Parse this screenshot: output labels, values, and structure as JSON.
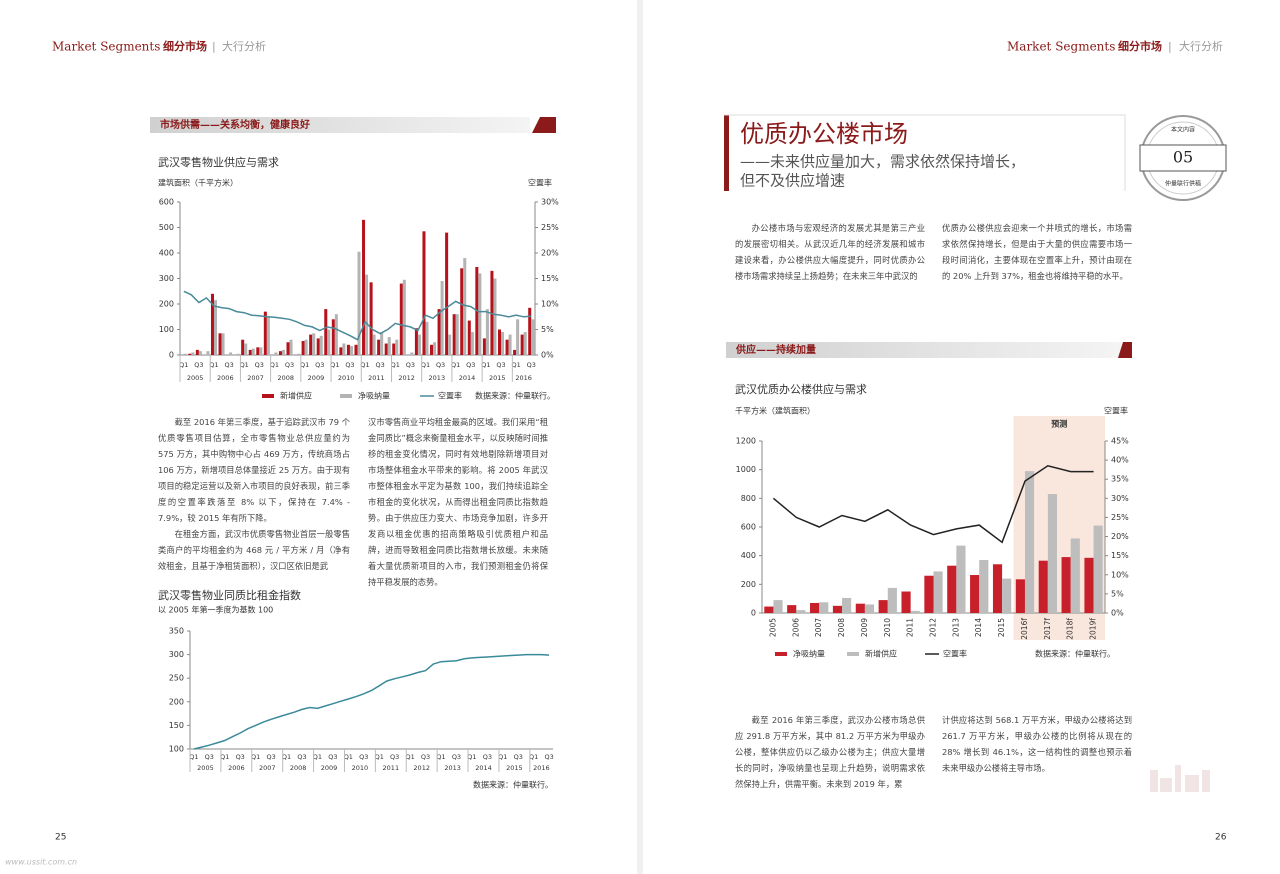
{
  "header": {
    "left": {
      "en": "Market Segments",
      "cn": "细分市场",
      "sep": "|",
      "tag": "大行分析"
    },
    "right": {
      "en": "Market Segments",
      "cn": "细分市场",
      "sep": "|",
      "tag": "大行分析"
    }
  },
  "left_page": {
    "section_heading": "市场供需——关系均衡，健康良好",
    "paragraphs_col1": [
      "截至 2016 年第三季度，基于追踪武汉市 79 个优质零售项目估算，全市零售物业总供应量约为 575 万方，其中购物中心占 469 万方，传统商场占 106 万方，新增项目总体量接近 25 万方。由于现有项目的稳定运营以及新入市项目的良好表现，前三季度的空置率跌落至 8% 以下，保持在 7.4% - 7.9%，较 2015 年有所下降。",
      "在租金方面，武汉市优质零售物业首层一般零售类商户的平均租金约为 468 元 / 平方米 / 月（净有效租金，且基于净租赁面积），汉口区依旧是武"
    ],
    "paragraphs_col2": [
      "汉市零售商业平均租金最高的区域。我们采用“租金同质比”概念来衡量租金水平，以反映随时间推移的租金变化情况，同时有效地剔除新增项目对市场整体租金水平带来的影响。将 2005 年武汉市整体租金水平定为基数 100，我们持续追踪全市租金的变化状况，从而得出租金同质比指数趋势。由于供应压力变大、市场竞争加剧，许多开发商以租金优惠的招商策略吸引优质租户和品牌，进而导致租金同质比指数增长放缓。未来随着大量优质新项目的入市，我们预测租金仍将保持平稳发展的态势。"
    ],
    "page_number": "25",
    "watermark": "www.ussit.com.cn"
  },
  "right_page": {
    "title": "优质办公楼市场",
    "subtitle_lines": [
      "——未来供应量加大，需求依然保持增长，",
      "但不及供应增速"
    ],
    "badge": {
      "top": "本文内容",
      "number": "05",
      "bottom": "仲量联行供稿"
    },
    "intro_col1": "办公楼市场与宏观经济的发展尤其是第三产业的发展密切相关。从武汉近几年的经济发展和城市建设来看，办公楼供应大幅度提升，同时优质办公楼市场需求持续呈上扬趋势；在未来三年中武汉的",
    "intro_col2": "优质办公楼供应会迎来一个井喷式的增长，市场需求依然保持增长，但是由于大量的供应需要市场一段时间消化，主要体现在空置率上升，预计由现在的 20% 上升到 37%，租金也将维持平稳的水平。",
    "section_heading": "供应——持续加量",
    "body_col1": "截至 2016 年第三季度，武汉办公楼市场总供应 291.8 万平方米，其中 81.2 万平方米为甲级办公楼，整体供应仍以乙级办公楼为主；供应大量增长的同时，净吸纳量也呈现上升趋势，说明需求依然保持上升，供需平衡。未来到 2019 年，累",
    "body_col2": "计供应将达到 568.1 万平方米，甲级办公楼将达到 261.7 万平方米，甲级办公楼的比例将从现在的 28% 增长到 46.1%，这一结构性的调整也预示着未来甲级办公楼将主导市场。",
    "page_number": "26"
  },
  "chart_data": [
    {
      "type": "bar",
      "title": "武汉零售物业供应与需求",
      "y_label": "建筑面积（千平方米）",
      "y2_label": "空置率",
      "source": "数据来源：仲量联行。",
      "categories": [
        "Q1",
        null,
        "Q3",
        null,
        "Q1",
        null,
        "Q3",
        null,
        "Q1",
        null,
        "Q3",
        null,
        "Q1",
        null,
        "Q3",
        null,
        "Q1",
        null,
        "Q3",
        null,
        "Q1",
        null,
        "Q3",
        null,
        "Q1",
        null,
        "Q3",
        null,
        "Q1",
        null,
        "Q3",
        null,
        "Q1",
        null,
        "Q3",
        null,
        "Q1",
        null,
        "Q3",
        null,
        "Q1",
        null,
        "Q3",
        null,
        "Q1",
        null,
        "Q3"
      ],
      "year_labels": [
        "2005",
        "2006",
        "2007",
        "2008",
        "2009",
        "2010",
        "2011",
        "2012",
        "2013",
        "2014",
        "2015",
        "2016"
      ],
      "series": [
        {
          "name": "新增供应",
          "color": "#b5121b",
          "values": [
            0,
            5,
            20,
            0,
            240,
            85,
            0,
            0,
            60,
            20,
            30,
            170,
            0,
            15,
            50,
            0,
            55,
            80,
            65,
            180,
            140,
            30,
            40,
            40,
            530,
            285,
            60,
            45,
            45,
            280,
            0,
            105,
            485,
            40,
            180,
            480,
            160,
            340,
            135,
            345,
            65,
            330,
            100,
            60,
            20,
            80,
            185
          ]
        },
        {
          "name": "净吸纳量",
          "color": "#b3b3b3",
          "values": [
            5,
            10,
            15,
            15,
            215,
            85,
            10,
            5,
            45,
            25,
            30,
            150,
            10,
            20,
            60,
            5,
            60,
            85,
            75,
            100,
            160,
            45,
            35,
            405,
            315,
            80,
            90,
            70,
            60,
            295,
            10,
            80,
            130,
            50,
            290,
            80,
            160,
            380,
            90,
            320,
            180,
            300,
            90,
            80,
            140,
            90,
            140
          ]
        },
        {
          "name": "空置率",
          "color": "#4a8a9a",
          "axis": "y2",
          "values": [
            12.5,
            11.8,
            10.3,
            11.2,
            9.6,
            9.3,
            9.1,
            8.5,
            8.3,
            7.8,
            7.7,
            7.5,
            7.4,
            7.2,
            7.0,
            6.5,
            5.8,
            5.5,
            4.8,
            5.5,
            5.2,
            4.5,
            3.8,
            3.0,
            6.5,
            5.0,
            4.2,
            5.0,
            6.2,
            5.8,
            5.5,
            4.8,
            7.8,
            7.2,
            8.5,
            9.5,
            10.5,
            9.8,
            9.5,
            8.5,
            8.5,
            8.0,
            7.8,
            7.5,
            7.8,
            7.5,
            7.6
          ]
        }
      ],
      "ylim": [
        0,
        600
      ],
      "yticks": [
        0,
        100,
        200,
        300,
        400,
        500,
        600
      ],
      "y2lim": [
        0,
        30
      ],
      "y2ticks": [
        {
          "value": 0,
          "label": "0%"
        },
        {
          "value": 5,
          "label": "5%"
        },
        {
          "value": 10,
          "label": "10%"
        },
        {
          "value": 15,
          "label": "15%"
        },
        {
          "value": 20,
          "label": "20%"
        },
        {
          "value": 25,
          "label": "25%"
        },
        {
          "value": 30,
          "label": "30%"
        }
      ]
    },
    {
      "type": "line",
      "title": "武汉零售物业同质比租金指数",
      "subtitle": "以 2005 年第一季度为基数 100",
      "source": "数据来源：仲量联行。",
      "categories": [
        "Q1",
        null,
        "Q3",
        null,
        "Q1",
        null,
        "Q3",
        null,
        "Q1",
        null,
        "Q3",
        null,
        "Q1",
        null,
        "Q3",
        null,
        "Q1",
        null,
        "Q3",
        null,
        "Q1",
        null,
        "Q3",
        null,
        "Q1",
        null,
        "Q3",
        null,
        "Q1",
        null,
        "Q3",
        null,
        "Q1",
        null,
        "Q3",
        null,
        "Q1",
        null,
        "Q3",
        null,
        "Q1",
        null,
        "Q3",
        null,
        "Q1",
        null,
        "Q3"
      ],
      "year_labels": [
        "2005",
        "2006",
        "2007",
        "2008",
        "2009",
        "2010",
        "2011",
        "2012",
        "2013",
        "2014",
        "2015",
        "2016"
      ],
      "series": [
        {
          "name": null,
          "color": "#3a8a9a",
          "values": [
            100,
            104,
            108,
            113,
            118,
            126,
            134,
            143,
            150,
            157,
            163,
            168,
            173,
            178,
            184,
            188,
            186,
            191,
            196,
            201,
            206,
            211,
            217,
            224,
            234,
            244,
            249,
            253,
            257,
            262,
            266,
            280,
            285,
            286,
            287,
            291,
            293,
            294,
            295,
            296,
            297,
            298,
            299,
            300,
            300,
            300,
            299
          ]
        }
      ],
      "ylim": [
        100,
        350
      ],
      "yticks": [
        100,
        150,
        200,
        250,
        300,
        350
      ]
    },
    {
      "type": "bar",
      "title": "武汉优质办公楼供应与需求",
      "y_label": "千平方米（建筑面积）",
      "y2_label": "空置率",
      "source": "数据来源：仲量联行。",
      "annotation": "预测",
      "categories": [
        "2005",
        "2006",
        "2007",
        "2008",
        "2009",
        "2010",
        "2011",
        "2012",
        "2013",
        "2014",
        "2015",
        "2016f",
        "2017f",
        "2018f",
        "2019f"
      ],
      "series": [
        {
          "name": "净吸纳量",
          "color": "#c8202a",
          "values": [
            45,
            55,
            70,
            50,
            65,
            90,
            150,
            260,
            330,
            265,
            340,
            235,
            365,
            390,
            385
          ]
        },
        {
          "name": "新增供应",
          "color": "#bdbdbd",
          "values": [
            90,
            20,
            75,
            105,
            60,
            175,
            15,
            290,
            470,
            370,
            240,
            990,
            830,
            520,
            610
          ]
        },
        {
          "name": "空置率",
          "color": "#222222",
          "axis": "y2",
          "values": [
            30,
            25,
            22.5,
            25.5,
            24,
            27,
            23,
            20.5,
            22,
            23,
            18.5,
            34.5,
            38.5,
            37,
            37
          ]
        }
      ],
      "ylim": [
        0,
        1200
      ],
      "yticks": [
        0,
        200,
        400,
        600,
        800,
        1000,
        1200
      ],
      "y2lim": [
        0,
        45
      ],
      "y2ticks": [
        {
          "value": 0,
          "label": "0%"
        },
        {
          "value": 5,
          "label": "5%"
        },
        {
          "value": 10,
          "label": "10%"
        },
        {
          "value": 15,
          "label": "15%"
        },
        {
          "value": 20,
          "label": "20%"
        },
        {
          "value": 25,
          "label": "25%"
        },
        {
          "value": 30,
          "label": "30%"
        },
        {
          "value": 35,
          "label": "35%"
        },
        {
          "value": 40,
          "label": "40%"
        },
        {
          "value": 45,
          "label": "45%"
        }
      ]
    }
  ]
}
